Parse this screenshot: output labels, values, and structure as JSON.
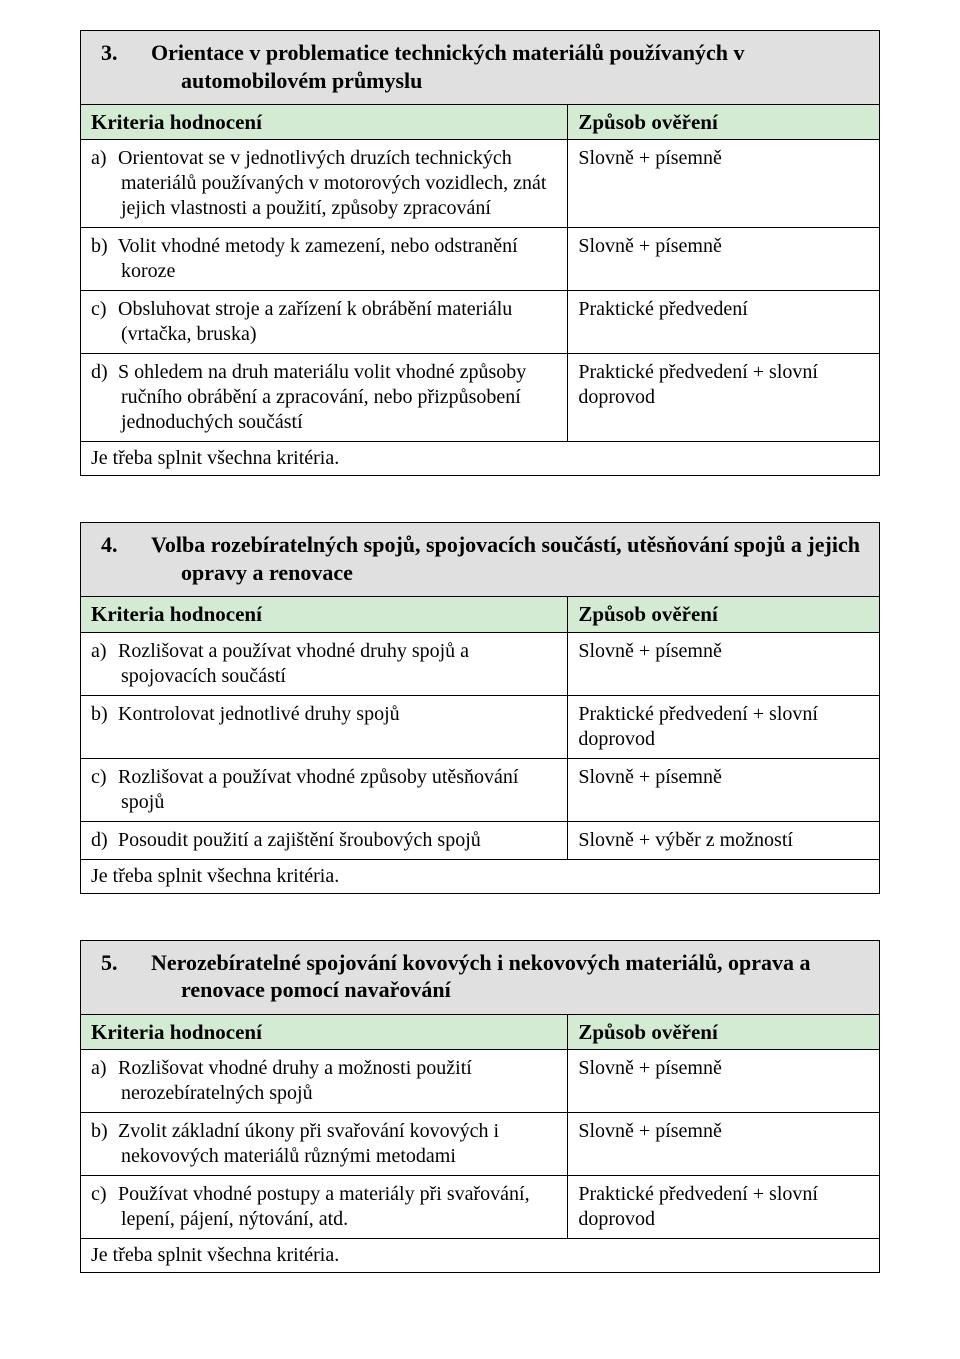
{
  "colors": {
    "title_bg": "#e0e0e0",
    "header_bg": "#d3ebd3",
    "border": "#000000",
    "text": "#000000",
    "page_bg": "#ffffff"
  },
  "header_labels": {
    "criteria": "Kriteria hodnocení",
    "method": "Způsob ověření"
  },
  "common": {
    "footer": "Je třeba splnit všechna kritéria."
  },
  "sections": [
    {
      "number": "3.",
      "title": "Orientace v problematice technických materiálů používaných v automobilovém průmyslu",
      "rows": [
        {
          "label": "a)",
          "criterion": "Orientovat se v jednotlivých druzích technických materiálů používaných v motorových vozidlech, znát jejich vlastnosti a použití, způsoby zpracování",
          "method": "Slovně + písemně"
        },
        {
          "label": "b)",
          "criterion": "Volit vhodné metody k zamezení, nebo odstranění koroze",
          "method": "Slovně + písemně"
        },
        {
          "label": "c)",
          "criterion": "Obsluhovat stroje a zařízení k obrábění materiálu (vrtačka, bruska)",
          "method": "Praktické předvedení"
        },
        {
          "label": "d)",
          "criterion": "S ohledem na druh materiálu volit vhodné způsoby ručního obrábění a zpracování, nebo přizpůsobení jednoduchých součástí",
          "method": "Praktické předvedení + slovní doprovod"
        }
      ]
    },
    {
      "number": "4.",
      "title": "Volba rozebíratelných spojů, spojovacích součástí, utěsňování spojů a jejich opravy a renovace",
      "rows": [
        {
          "label": "a)",
          "criterion": "Rozlišovat a používat vhodné druhy spojů a spojovacích součástí",
          "method": "Slovně + písemně"
        },
        {
          "label": "b)",
          "criterion": "Kontrolovat jednotlivé druhy spojů",
          "method": "Praktické předvedení + slovní doprovod"
        },
        {
          "label": "c)",
          "criterion": "Rozlišovat a používat vhodné způsoby utěsňování spojů",
          "method": "Slovně + písemně"
        },
        {
          "label": "d)",
          "criterion": "Posoudit použití a zajištění šroubových spojů",
          "method": "Slovně + výběr z možností"
        }
      ]
    },
    {
      "number": "5.",
      "title": "Nerozebíratelné spojování kovových i nekovových materiálů, oprava a renovace pomocí navařování",
      "rows": [
        {
          "label": "a)",
          "criterion": "Rozlišovat vhodné druhy a možnosti použití nerozebíratelných spojů",
          "method": "Slovně + písemně"
        },
        {
          "label": "b)",
          "criterion": "Zvolit základní úkony při svařování kovových i nekovových materiálů různými metodami",
          "method": "Slovně + písemně"
        },
        {
          "label": "c)",
          "criterion": "Používat vhodné postupy a materiály při svařování, lepení, pájení, nýtování, atd.",
          "method": "Praktické předvedení + slovní doprovod"
        }
      ]
    }
  ]
}
